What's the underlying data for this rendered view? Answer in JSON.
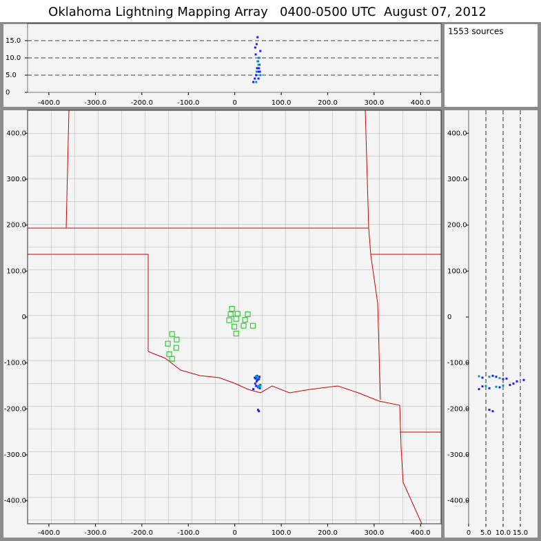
{
  "title": "Oklahoma Lightning Mapping Array   0400-0500 UTC  August 07, 2012",
  "source_count_label": "1553 sources",
  "chart_data": {
    "type": "scatter",
    "xlim": [
      -446,
      444
    ],
    "ylim": [
      -450,
      450
    ],
    "zlim": [
      0,
      20
    ],
    "xticks": [
      {
        "value": -400,
        "label": "-400.0"
      },
      {
        "value": -300,
        "label": "-300.0"
      },
      {
        "value": -200,
        "label": "-200.0"
      },
      {
        "value": -100,
        "label": "-100.0"
      },
      0,
      {
        "value": 100,
        "label": "100.0"
      },
      {
        "value": 200,
        "label": "200.0"
      },
      {
        "value": 300,
        "label": "300.0"
      },
      {
        "value": 400,
        "label": "400.0"
      }
    ],
    "yticks": [
      {
        "value": 400,
        "label": "400.0"
      },
      {
        "value": 300,
        "label": "300.0"
      },
      {
        "value": 200,
        "label": "200.0"
      },
      {
        "value": 100,
        "label": "100.0"
      },
      0,
      {
        "value": -100,
        "label": "-100.0"
      },
      {
        "value": -200,
        "label": "-200.0"
      },
      {
        "value": -300,
        "label": "-300.0"
      },
      {
        "value": -400,
        "label": "-400.0"
      }
    ],
    "top_xticks": [
      {
        "value": -400,
        "label": "-400.0"
      },
      {
        "value": -300,
        "label": "-300.0"
      },
      {
        "value": -200,
        "label": "-200.0"
      },
      {
        "value": -100,
        "label": "-100.0"
      },
      0,
      {
        "value": 100,
        "label": "100.0"
      },
      {
        "value": 200,
        "label": "200.0"
      },
      {
        "value": 300,
        "label": "300.0"
      },
      {
        "value": 400,
        "label": "400.0"
      }
    ],
    "top_zticks": [
      0,
      {
        "value": 5,
        "label": "5.0"
      },
      {
        "value": 10,
        "label": "10.0"
      },
      {
        "value": 15,
        "label": "15.0"
      }
    ],
    "side_yticks": [
      {
        "value": 400,
        "label": "400.0"
      },
      {
        "value": 300,
        "label": "300.0"
      },
      {
        "value": 200,
        "label": "200.0"
      },
      {
        "value": 100,
        "label": "100.0"
      },
      0,
      {
        "value": -100,
        "label": "-100.0"
      },
      {
        "value": -200,
        "label": "-200.0"
      },
      {
        "value": -300,
        "label": "-300.0"
      },
      {
        "value": -400,
        "label": "-400.0"
      }
    ],
    "side_zticks": [
      0,
      {
        "value": 5,
        "label": "5.0"
      },
      {
        "value": 10,
        "label": "10.0"
      },
      {
        "value": 15,
        "label": "15.0"
      }
    ],
    "grid": true,
    "stations": {
      "color": "#33cc33",
      "x": [
        -6,
        -9,
        6,
        28,
        -12,
        3,
        22,
        39,
        -1,
        19,
        3,
        -135,
        -125,
        -144,
        -126,
        -141,
        -135
      ],
      "y": [
        18,
        6,
        7,
        6,
        -7,
        -4,
        -6,
        -19,
        -21,
        -19,
        -36,
        -37,
        -49,
        -58,
        -67,
        -81,
        -91
      ]
    },
    "sources": [
      {
        "color": "#1a1aff",
        "x": [
          43,
          48,
          52,
          46,
          50,
          55,
          40,
          47,
          53,
          50,
          45,
          51,
          49,
          54,
          44,
          52
        ],
        "y": [
          -132,
          -128,
          -135,
          -150,
          -153,
          -148,
          -157,
          -140,
          -130,
          -202,
          -134,
          -151,
          -137,
          -155,
          -145,
          -205
        ],
        "z": [
          4,
          7,
          10,
          5,
          9,
          12,
          3,
          14,
          8,
          6,
          11,
          4,
          16,
          6,
          13,
          7
        ]
      },
      {
        "color": "#00a0a0",
        "x": [
          47,
          49,
          55,
          51,
          46,
          53
        ],
        "y": [
          -130,
          -133,
          -150,
          -152,
          -129,
          -149
        ],
        "z": [
          6,
          9,
          5,
          8,
          3,
          10
        ]
      }
    ]
  }
}
